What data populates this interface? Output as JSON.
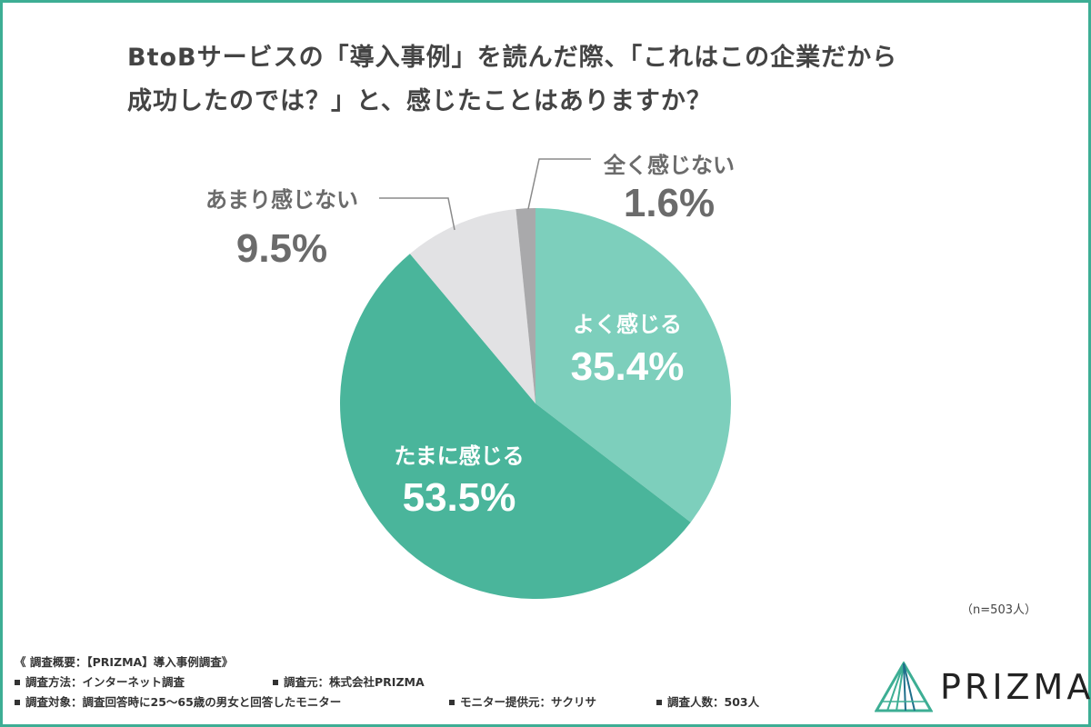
{
  "title": {
    "line1": "BtoBサービスの「導入事例」を読んだ際、「これはこの企業だから",
    "line2": "成功したのでは？」と、感じたことはありますか？"
  },
  "chart_data": {
    "type": "pie",
    "title": "BtoBサービスの「導入事例」を読んだ際、「これはこの企業だから成功したのでは？」と、感じたことはありますか？",
    "slices": [
      {
        "label": "よく感じる",
        "value": 35.4,
        "display": "35.4%",
        "color": "#7dcfbc"
      },
      {
        "label": "たまに感じる",
        "value": 53.5,
        "display": "53.5%",
        "color": "#4ab59b"
      },
      {
        "label": "あまり感じない",
        "value": 9.5,
        "display": "9.5%",
        "color": "#e2e2e4"
      },
      {
        "label": "全く感じない",
        "value": 1.6,
        "display": "1.6%",
        "color": "#a9a9ab"
      }
    ],
    "n_label": "（n=503人）"
  },
  "footer": {
    "summary": "《 調査概要：【PRIZMA】導入事例調査》",
    "method": "調査方法：インターネット調査",
    "source": "調査元：株式会社PRIZMA",
    "target": "調査対象：調査回答時に25〜65歳の男女と回答したモニター",
    "provider": "モニター提供元：サクリサ",
    "count": "調査人数：503人"
  },
  "logo": {
    "text": "PRIZMA",
    "color": "#3dae94"
  }
}
